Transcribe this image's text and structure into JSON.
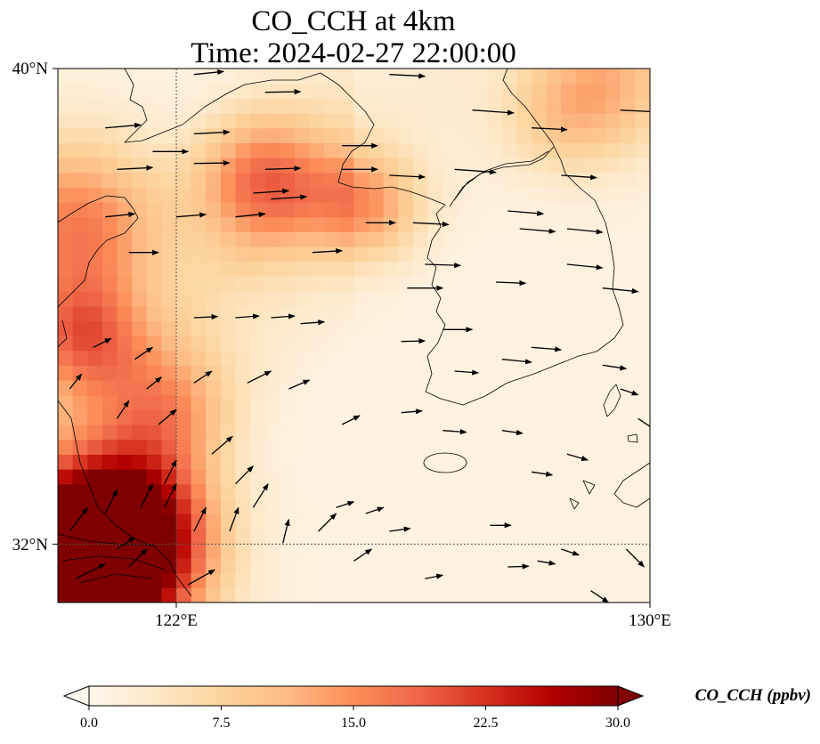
{
  "title": {
    "line1": "CO_CCH at 4km",
    "line2": "Time: 2024-02-27 22:00:00"
  },
  "map": {
    "lon_range": [
      120,
      130
    ],
    "lat_range": [
      31,
      40
    ],
    "gridlines": {
      "lon": [
        122
      ],
      "lat": [
        32
      ],
      "style": "dotted"
    },
    "lat_ticks": [
      {
        "value": 40,
        "label": "40°N"
      },
      {
        "value": 32,
        "label": "32°N"
      }
    ],
    "lon_ticks": [
      {
        "value": 122,
        "label": "122°E"
      },
      {
        "value": 130,
        "label": "130°E"
      }
    ],
    "field": "CO_CCH concentration at 4 km",
    "field_hotspots": [
      {
        "lon": 120.5,
        "lat": 31.5,
        "value": 30,
        "spread": 1.6
      },
      {
        "lon": 119.6,
        "lat": 31.0,
        "value": 30,
        "spread": 1.4
      },
      {
        "lon": 121.2,
        "lat": 32.3,
        "value": 24,
        "spread": 1.3
      },
      {
        "lon": 120.3,
        "lat": 37.4,
        "value": 15,
        "spread": 1.4
      },
      {
        "lon": 123.5,
        "lat": 38.1,
        "value": 15,
        "spread": 1.1
      },
      {
        "lon": 125.2,
        "lat": 37.7,
        "value": 12,
        "spread": 0.9
      },
      {
        "lon": 120.4,
        "lat": 35.5,
        "value": 14,
        "spread": 1.0
      },
      {
        "lon": 121.8,
        "lat": 34.3,
        "value": 11,
        "spread": 1.1
      },
      {
        "lon": 129.4,
        "lat": 39.8,
        "value": 9,
        "spread": 1.2
      },
      {
        "lon": 128.5,
        "lat": 39.2,
        "value": 6,
        "spread": 1.0
      }
    ],
    "wind_note": "arrows indicate wind direction at 4 km (mostly westerly)",
    "wind_vectors": [
      {
        "lon": 120.8,
        "lat": 39.0,
        "u": 0.6,
        "v": 0.05
      },
      {
        "lon": 121.0,
        "lat": 38.3,
        "u": 0.6,
        "v": 0.03
      },
      {
        "lon": 121.6,
        "lat": 38.6,
        "u": 0.6,
        "v": 0.0
      },
      {
        "lon": 122.3,
        "lat": 39.9,
        "u": 0.5,
        "v": 0.05
      },
      {
        "lon": 122.3,
        "lat": 38.9,
        "u": 0.6,
        "v": 0.03
      },
      {
        "lon": 122.3,
        "lat": 38.4,
        "u": 0.6,
        "v": 0.01
      },
      {
        "lon": 123.5,
        "lat": 39.6,
        "u": 0.6,
        "v": 0.01
      },
      {
        "lon": 123.5,
        "lat": 38.3,
        "u": 0.6,
        "v": 0.02
      },
      {
        "lon": 123.6,
        "lat": 37.8,
        "u": 0.6,
        "v": 0.04
      },
      {
        "lon": 124.8,
        "lat": 38.7,
        "u": 0.6,
        "v": 0.0
      },
      {
        "lon": 124.8,
        "lat": 38.3,
        "u": 0.6,
        "v": 0.0
      },
      {
        "lon": 125.6,
        "lat": 38.2,
        "u": 0.6,
        "v": -0.03
      },
      {
        "lon": 125.6,
        "lat": 39.9,
        "u": 0.6,
        "v": -0.03
      },
      {
        "lon": 126.7,
        "lat": 38.3,
        "u": 0.7,
        "v": -0.05
      },
      {
        "lon": 127.0,
        "lat": 39.3,
        "u": 0.7,
        "v": -0.05
      },
      {
        "lon": 128.0,
        "lat": 39.0,
        "u": 0.6,
        "v": -0.03
      },
      {
        "lon": 128.5,
        "lat": 38.2,
        "u": 0.6,
        "v": -0.04
      },
      {
        "lon": 129.5,
        "lat": 39.3,
        "u": 0.6,
        "v": -0.03
      },
      {
        "lon": 120.8,
        "lat": 37.5,
        "u": 0.5,
        "v": 0.05
      },
      {
        "lon": 121.2,
        "lat": 36.9,
        "u": 0.5,
        "v": 0.0
      },
      {
        "lon": 122.0,
        "lat": 37.5,
        "u": 0.5,
        "v": 0.04
      },
      {
        "lon": 123.0,
        "lat": 37.5,
        "u": 0.5,
        "v": 0.05
      },
      {
        "lon": 123.3,
        "lat": 37.9,
        "u": 0.6,
        "v": 0.04
      },
      {
        "lon": 124.3,
        "lat": 36.9,
        "u": 0.5,
        "v": 0.03
      },
      {
        "lon": 125.2,
        "lat": 37.4,
        "u": 0.5,
        "v": 0.0
      },
      {
        "lon": 126.0,
        "lat": 37.4,
        "u": 0.6,
        "v": -0.03
      },
      {
        "lon": 126.2,
        "lat": 36.7,
        "u": 0.6,
        "v": -0.02
      },
      {
        "lon": 127.6,
        "lat": 37.6,
        "u": 0.6,
        "v": -0.05
      },
      {
        "lon": 127.8,
        "lat": 37.3,
        "u": 0.6,
        "v": -0.05
      },
      {
        "lon": 128.6,
        "lat": 37.3,
        "u": 0.6,
        "v": -0.06
      },
      {
        "lon": 128.6,
        "lat": 36.7,
        "u": 0.6,
        "v": -0.06
      },
      {
        "lon": 129.2,
        "lat": 36.3,
        "u": 0.6,
        "v": -0.06
      },
      {
        "lon": 122.3,
        "lat": 35.8,
        "u": 0.4,
        "v": 0.02
      },
      {
        "lon": 123.0,
        "lat": 35.8,
        "u": 0.4,
        "v": 0.03
      },
      {
        "lon": 123.6,
        "lat": 35.8,
        "u": 0.4,
        "v": 0.03
      },
      {
        "lon": 124.1,
        "lat": 35.7,
        "u": 0.4,
        "v": 0.03
      },
      {
        "lon": 125.9,
        "lat": 36.3,
        "u": 0.6,
        "v": 0.0
      },
      {
        "lon": 127.4,
        "lat": 36.4,
        "u": 0.5,
        "v": -0.02
      },
      {
        "lon": 125.8,
        "lat": 35.4,
        "u": 0.4,
        "v": 0.01
      },
      {
        "lon": 126.5,
        "lat": 35.6,
        "u": 0.5,
        "v": 0.0
      },
      {
        "lon": 126.7,
        "lat": 34.9,
        "u": 0.4,
        "v": -0.03
      },
      {
        "lon": 127.5,
        "lat": 35.1,
        "u": 0.5,
        "v": -0.05
      },
      {
        "lon": 128.0,
        "lat": 35.3,
        "u": 0.5,
        "v": -0.04
      },
      {
        "lon": 129.2,
        "lat": 35.0,
        "u": 0.4,
        "v": -0.06
      },
      {
        "lon": 129.5,
        "lat": 34.6,
        "u": 0.3,
        "v": -0.1
      },
      {
        "lon": 129.8,
        "lat": 34.1,
        "u": 0.3,
        "v": -0.2
      },
      {
        "lon": 120.6,
        "lat": 35.3,
        "u": 0.3,
        "v": 0.15
      },
      {
        "lon": 121.3,
        "lat": 35.1,
        "u": 0.3,
        "v": 0.2
      },
      {
        "lon": 121.5,
        "lat": 34.6,
        "u": 0.25,
        "v": 0.2
      },
      {
        "lon": 122.3,
        "lat": 34.7,
        "u": 0.3,
        "v": 0.2
      },
      {
        "lon": 123.2,
        "lat": 34.7,
        "u": 0.4,
        "v": 0.2
      },
      {
        "lon": 123.9,
        "lat": 34.6,
        "u": 0.35,
        "v": 0.15
      },
      {
        "lon": 120.2,
        "lat": 34.6,
        "u": 0.2,
        "v": 0.25
      },
      {
        "lon": 121.0,
        "lat": 34.1,
        "u": 0.2,
        "v": 0.3
      },
      {
        "lon": 121.7,
        "lat": 34.0,
        "u": 0.3,
        "v": 0.25
      },
      {
        "lon": 124.8,
        "lat": 34.0,
        "u": 0.3,
        "v": 0.15
      },
      {
        "lon": 125.8,
        "lat": 34.2,
        "u": 0.35,
        "v": 0.03
      },
      {
        "lon": 126.5,
        "lat": 33.9,
        "u": 0.4,
        "v": -0.03
      },
      {
        "lon": 127.5,
        "lat": 33.9,
        "u": 0.35,
        "v": -0.05
      },
      {
        "lon": 128.0,
        "lat": 33.2,
        "u": 0.35,
        "v": -0.05
      },
      {
        "lon": 128.6,
        "lat": 33.5,
        "u": 0.35,
        "v": -0.1
      },
      {
        "lon": 121.8,
        "lat": 33.0,
        "u": 0.2,
        "v": 0.4
      },
      {
        "lon": 122.6,
        "lat": 33.5,
        "u": 0.35,
        "v": 0.3
      },
      {
        "lon": 123.0,
        "lat": 33.0,
        "u": 0.3,
        "v": 0.3
      },
      {
        "lon": 123.3,
        "lat": 32.6,
        "u": 0.25,
        "v": 0.4
      },
      {
        "lon": 121.4,
        "lat": 32.6,
        "u": 0.2,
        "v": 0.4
      },
      {
        "lon": 120.8,
        "lat": 32.5,
        "u": 0.2,
        "v": 0.4
      },
      {
        "lon": 120.2,
        "lat": 32.2,
        "u": 0.3,
        "v": 0.4
      },
      {
        "lon": 121.0,
        "lat": 31.9,
        "u": 0.3,
        "v": 0.2
      },
      {
        "lon": 121.8,
        "lat": 32.6,
        "u": 0.2,
        "v": 0.4
      },
      {
        "lon": 122.3,
        "lat": 32.2,
        "u": 0.2,
        "v": 0.4
      },
      {
        "lon": 122.9,
        "lat": 32.2,
        "u": 0.15,
        "v": 0.4
      },
      {
        "lon": 123.8,
        "lat": 32.0,
        "u": 0.1,
        "v": 0.4
      },
      {
        "lon": 124.4,
        "lat": 32.2,
        "u": 0.3,
        "v": 0.3
      },
      {
        "lon": 124.7,
        "lat": 32.6,
        "u": 0.3,
        "v": 0.1
      },
      {
        "lon": 125.2,
        "lat": 32.5,
        "u": 0.3,
        "v": 0.1
      },
      {
        "lon": 125.0,
        "lat": 31.7,
        "u": 0.3,
        "v": 0.2
      },
      {
        "lon": 125.6,
        "lat": 32.2,
        "u": 0.35,
        "v": 0.05
      },
      {
        "lon": 126.2,
        "lat": 31.4,
        "u": 0.3,
        "v": 0.06
      },
      {
        "lon": 127.3,
        "lat": 32.3,
        "u": 0.35,
        "v": 0.0
      },
      {
        "lon": 127.6,
        "lat": 31.6,
        "u": 0.35,
        "v": 0.01
      },
      {
        "lon": 128.1,
        "lat": 31.7,
        "u": 0.3,
        "v": -0.05
      },
      {
        "lon": 128.5,
        "lat": 31.9,
        "u": 0.3,
        "v": -0.1
      },
      {
        "lon": 129.6,
        "lat": 31.9,
        "u": 0.3,
        "v": -0.3
      },
      {
        "lon": 129.0,
        "lat": 31.2,
        "u": 0.3,
        "v": -0.2
      },
      {
        "lon": 122.2,
        "lat": 31.3,
        "u": 0.45,
        "v": 0.25
      },
      {
        "lon": 120.3,
        "lat": 31.4,
        "u": 0.5,
        "v": 0.25
      },
      {
        "lon": 121.2,
        "lat": 31.6,
        "u": 0.3,
        "v": 0.3
      }
    ]
  },
  "colorbar": {
    "label": "CO_CCH (ppbv)",
    "range": [
      0,
      30
    ],
    "extend": "both",
    "colormap": "OrRd",
    "colors": [
      "#fff7ec",
      "#fee8c8",
      "#fdd49e",
      "#fdbb84",
      "#fc8d59",
      "#ef6548",
      "#d7301f",
      "#b30000",
      "#7f0000"
    ],
    "ticks": [
      {
        "value": 0,
        "label": "0.0"
      },
      {
        "value": 7.5,
        "label": "7.5"
      },
      {
        "value": 15,
        "label": "15.0"
      },
      {
        "value": 22.5,
        "label": "22.5"
      },
      {
        "value": 30,
        "label": "30.0"
      }
    ]
  }
}
